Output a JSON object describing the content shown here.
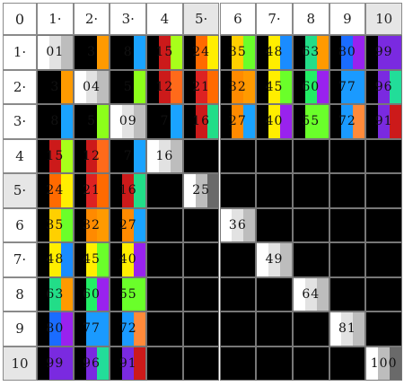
{
  "corner_label": "0",
  "column_headers": [
    "1·",
    "2·",
    "3·",
    "4",
    "5·",
    "6",
    "7·",
    "8",
    "9",
    "10"
  ],
  "row_headers": [
    "1·",
    "2·",
    "3·",
    "4",
    "5·",
    "6",
    "7·",
    "8",
    "9",
    "10"
  ],
  "highlighted_headers": [
    5,
    10
  ],
  "cells": [
    {
      "r": 1,
      "c": 1,
      "text": "01",
      "stripes": [
        "#ffffff",
        "#e2e2e2",
        "#bdbdbd"
      ]
    },
    {
      "r": 1,
      "c": 2,
      "text": "3",
      "stripes": [
        "#000000",
        "#000000",
        "#ff9a00"
      ]
    },
    {
      "r": 1,
      "c": 3,
      "text": "8",
      "stripes": [
        "#000000",
        "#000000",
        "#1aa3ff"
      ]
    },
    {
      "r": 1,
      "c": 4,
      "text": "15",
      "stripes": [
        "#000000",
        "#cc1a1a",
        "#a8ff1a"
      ]
    },
    {
      "r": 1,
      "c": 5,
      "text": "24",
      "stripes": [
        "#000000",
        "#ff6a00",
        "#ffee00"
      ]
    },
    {
      "r": 1,
      "c": 6,
      "text": "35",
      "stripes": [
        "#000000",
        "#ffd000",
        "#6aff2a"
      ]
    },
    {
      "r": 1,
      "c": 7,
      "text": "48",
      "stripes": [
        "#000000",
        "#ffee00",
        "#1a8cff"
      ]
    },
    {
      "r": 1,
      "c": 8,
      "text": "63",
      "stripes": [
        "#000000",
        "#22dd88",
        "#ff9a00"
      ]
    },
    {
      "r": 1,
      "c": 9,
      "text": "80",
      "stripes": [
        "#000000",
        "#1a6cff",
        "#9922ee"
      ]
    },
    {
      "r": 1,
      "c": 10,
      "text": "99",
      "stripes": [
        "#000000",
        "#7a2ae0",
        "#7a2ae0"
      ]
    },
    {
      "r": 2,
      "c": 1,
      "text": "3",
      "stripes": [
        "#000000",
        "#000000",
        "#ff9a00"
      ]
    },
    {
      "r": 2,
      "c": 2,
      "text": "04",
      "stripes": [
        "#ffffff",
        "#e2e2e2",
        "#bdbdbd"
      ]
    },
    {
      "r": 2,
      "c": 3,
      "text": "5",
      "stripes": [
        "#000000",
        "#000000",
        "#8cff1a"
      ]
    },
    {
      "r": 2,
      "c": 4,
      "text": "12",
      "stripes": [
        "#000000",
        "#cc1a1a",
        "#ff6a1a"
      ]
    },
    {
      "r": 2,
      "c": 5,
      "text": "21",
      "stripes": [
        "#000000",
        "#dd2222",
        "#ff6a00"
      ]
    },
    {
      "r": 2,
      "c": 6,
      "text": "32",
      "stripes": [
        "#000000",
        "#ff8a00",
        "#ff9a00"
      ]
    },
    {
      "r": 2,
      "c": 7,
      "text": "45",
      "stripes": [
        "#000000",
        "#ffee00",
        "#6aff2a"
      ]
    },
    {
      "r": 2,
      "c": 8,
      "text": "60",
      "stripes": [
        "#000000",
        "#22ee66",
        "#9922ee"
      ]
    },
    {
      "r": 2,
      "c": 9,
      "text": "77",
      "stripes": [
        "#000000",
        "#1a9aff",
        "#1a9aff"
      ]
    },
    {
      "r": 2,
      "c": 10,
      "text": "96",
      "stripes": [
        "#000000",
        "#7a2ae0",
        "#22dd99"
      ]
    },
    {
      "r": 3,
      "c": 1,
      "text": "8",
      "stripes": [
        "#000000",
        "#000000",
        "#1aa3ff"
      ]
    },
    {
      "r": 3,
      "c": 2,
      "text": "5",
      "stripes": [
        "#000000",
        "#000000",
        "#8cff1a"
      ]
    },
    {
      "r": 3,
      "c": 3,
      "text": "09",
      "stripes": [
        "#ffffff",
        "#e2e2e2",
        "#bdbdbd"
      ]
    },
    {
      "r": 3,
      "c": 4,
      "text": "7",
      "stripes": [
        "#000000",
        "#000000",
        "#1aa3ff"
      ]
    },
    {
      "r": 3,
      "c": 5,
      "text": "16",
      "stripes": [
        "#000000",
        "#cc1a1a",
        "#22dd88"
      ]
    },
    {
      "r": 3,
      "c": 6,
      "text": "27",
      "stripes": [
        "#000000",
        "#ff8a00",
        "#1aa3ff"
      ]
    },
    {
      "r": 3,
      "c": 7,
      "text": "40",
      "stripes": [
        "#000000",
        "#ffee00",
        "#9922ee"
      ]
    },
    {
      "r": 3,
      "c": 8,
      "text": "55",
      "stripes": [
        "#000000",
        "#6aff2a",
        "#6aff2a"
      ]
    },
    {
      "r": 3,
      "c": 9,
      "text": "72",
      "stripes": [
        "#000000",
        "#1a9aff",
        "#ff8a3a"
      ]
    },
    {
      "r": 3,
      "c": 10,
      "text": "91",
      "stripes": [
        "#000000",
        "#7a2ae0",
        "#cc1a1a"
      ]
    },
    {
      "r": 4,
      "c": 1,
      "text": "15",
      "stripes": [
        "#000000",
        "#cc1a1a",
        "#a8ff1a"
      ]
    },
    {
      "r": 4,
      "c": 2,
      "text": "12",
      "stripes": [
        "#000000",
        "#cc1a1a",
        "#ff6a1a"
      ]
    },
    {
      "r": 4,
      "c": 3,
      "text": "7",
      "stripes": [
        "#000000",
        "#000000",
        "#1aa3ff"
      ]
    },
    {
      "r": 4,
      "c": 4,
      "text": "16",
      "stripes": [
        "#ffffff",
        "#e2e2e2",
        "#bdbdbd"
      ]
    },
    {
      "r": 4,
      "c": 5,
      "text": "",
      "stripes": [
        "#000000",
        "#000000",
        "#000000"
      ]
    },
    {
      "r": 4,
      "c": 6,
      "text": "",
      "stripes": [
        "#000000",
        "#000000",
        "#000000"
      ]
    },
    {
      "r": 4,
      "c": 7,
      "text": "",
      "stripes": [
        "#000000",
        "#000000",
        "#000000"
      ]
    },
    {
      "r": 4,
      "c": 8,
      "text": "",
      "stripes": [
        "#000000",
        "#000000",
        "#000000"
      ]
    },
    {
      "r": 4,
      "c": 9,
      "text": "",
      "stripes": [
        "#000000",
        "#000000",
        "#000000"
      ]
    },
    {
      "r": 4,
      "c": 10,
      "text": "",
      "stripes": [
        "#000000",
        "#000000",
        "#000000"
      ]
    },
    {
      "r": 5,
      "c": 1,
      "text": "24",
      "stripes": [
        "#000000",
        "#ff6a00",
        "#ffee00"
      ]
    },
    {
      "r": 5,
      "c": 2,
      "text": "21",
      "stripes": [
        "#000000",
        "#dd2222",
        "#ff6a00"
      ]
    },
    {
      "r": 5,
      "c": 3,
      "text": "16",
      "stripes": [
        "#000000",
        "#cc1a1a",
        "#22dd88"
      ]
    },
    {
      "r": 5,
      "c": 4,
      "text": "",
      "stripes": [
        "#000000",
        "#000000",
        "#000000"
      ]
    },
    {
      "r": 5,
      "c": 5,
      "text": "25",
      "stripes": [
        "#ffffff",
        "#bdbdbd",
        "#6a6a6a"
      ]
    },
    {
      "r": 5,
      "c": 6,
      "text": "",
      "stripes": [
        "#000000",
        "#000000",
        "#000000"
      ]
    },
    {
      "r": 5,
      "c": 7,
      "text": "",
      "stripes": [
        "#000000",
        "#000000",
        "#000000"
      ]
    },
    {
      "r": 5,
      "c": 8,
      "text": "",
      "stripes": [
        "#000000",
        "#000000",
        "#000000"
      ]
    },
    {
      "r": 5,
      "c": 9,
      "text": "",
      "stripes": [
        "#000000",
        "#000000",
        "#000000"
      ]
    },
    {
      "r": 5,
      "c": 10,
      "text": "",
      "stripes": [
        "#000000",
        "#000000",
        "#000000"
      ]
    },
    {
      "r": 6,
      "c": 1,
      "text": "35",
      "stripes": [
        "#000000",
        "#ffd000",
        "#6aff2a"
      ]
    },
    {
      "r": 6,
      "c": 2,
      "text": "32",
      "stripes": [
        "#000000",
        "#ff8a00",
        "#ff9a00"
      ]
    },
    {
      "r": 6,
      "c": 3,
      "text": "27",
      "stripes": [
        "#000000",
        "#ff8a00",
        "#1aa3ff"
      ]
    },
    {
      "r": 6,
      "c": 4,
      "text": "",
      "stripes": [
        "#000000",
        "#000000",
        "#000000"
      ]
    },
    {
      "r": 6,
      "c": 5,
      "text": "",
      "stripes": [
        "#000000",
        "#000000",
        "#000000"
      ]
    },
    {
      "r": 6,
      "c": 6,
      "text": "36",
      "stripes": [
        "#ffffff",
        "#e2e2e2",
        "#bdbdbd"
      ]
    },
    {
      "r": 6,
      "c": 7,
      "text": "",
      "stripes": [
        "#000000",
        "#000000",
        "#000000"
      ]
    },
    {
      "r": 6,
      "c": 8,
      "text": "",
      "stripes": [
        "#000000",
        "#000000",
        "#000000"
      ]
    },
    {
      "r": 6,
      "c": 9,
      "text": "",
      "stripes": [
        "#000000",
        "#000000",
        "#000000"
      ]
    },
    {
      "r": 6,
      "c": 10,
      "text": "",
      "stripes": [
        "#000000",
        "#000000",
        "#000000"
      ]
    },
    {
      "r": 7,
      "c": 1,
      "text": "48",
      "stripes": [
        "#000000",
        "#ffee00",
        "#1a8cff"
      ]
    },
    {
      "r": 7,
      "c": 2,
      "text": "45",
      "stripes": [
        "#000000",
        "#ffee00",
        "#6aff2a"
      ]
    },
    {
      "r": 7,
      "c": 3,
      "text": "40",
      "stripes": [
        "#000000",
        "#ffee00",
        "#9922ee"
      ]
    },
    {
      "r": 7,
      "c": 4,
      "text": "",
      "stripes": [
        "#000000",
        "#000000",
        "#000000"
      ]
    },
    {
      "r": 7,
      "c": 5,
      "text": "",
      "stripes": [
        "#000000",
        "#000000",
        "#000000"
      ]
    },
    {
      "r": 7,
      "c": 6,
      "text": "",
      "stripes": [
        "#000000",
        "#000000",
        "#000000"
      ]
    },
    {
      "r": 7,
      "c": 7,
      "text": "49",
      "stripes": [
        "#ffffff",
        "#e2e2e2",
        "#bdbdbd"
      ]
    },
    {
      "r": 7,
      "c": 8,
      "text": "",
      "stripes": [
        "#000000",
        "#000000",
        "#000000"
      ]
    },
    {
      "r": 7,
      "c": 9,
      "text": "",
      "stripes": [
        "#000000",
        "#000000",
        "#000000"
      ]
    },
    {
      "r": 7,
      "c": 10,
      "text": "",
      "stripes": [
        "#000000",
        "#000000",
        "#000000"
      ]
    },
    {
      "r": 8,
      "c": 1,
      "text": "63",
      "stripes": [
        "#000000",
        "#22dd88",
        "#ff9a00"
      ]
    },
    {
      "r": 8,
      "c": 2,
      "text": "60",
      "stripes": [
        "#000000",
        "#22ee66",
        "#9922ee"
      ]
    },
    {
      "r": 8,
      "c": 3,
      "text": "55",
      "stripes": [
        "#000000",
        "#6aff2a",
        "#6aff2a"
      ]
    },
    {
      "r": 8,
      "c": 4,
      "text": "",
      "stripes": [
        "#000000",
        "#000000",
        "#000000"
      ]
    },
    {
      "r": 8,
      "c": 5,
      "text": "",
      "stripes": [
        "#000000",
        "#000000",
        "#000000"
      ]
    },
    {
      "r": 8,
      "c": 6,
      "text": "",
      "stripes": [
        "#000000",
        "#000000",
        "#000000"
      ]
    },
    {
      "r": 8,
      "c": 7,
      "text": "",
      "stripes": [
        "#000000",
        "#000000",
        "#000000"
      ]
    },
    {
      "r": 8,
      "c": 8,
      "text": "64",
      "stripes": [
        "#ffffff",
        "#e2e2e2",
        "#bdbdbd"
      ]
    },
    {
      "r": 8,
      "c": 9,
      "text": "",
      "stripes": [
        "#000000",
        "#000000",
        "#000000"
      ]
    },
    {
      "r": 8,
      "c": 10,
      "text": "",
      "stripes": [
        "#000000",
        "#000000",
        "#000000"
      ]
    },
    {
      "r": 9,
      "c": 1,
      "text": "80",
      "stripes": [
        "#000000",
        "#1a6cff",
        "#9922ee"
      ]
    },
    {
      "r": 9,
      "c": 2,
      "text": "77",
      "stripes": [
        "#000000",
        "#1a9aff",
        "#1a9aff"
      ]
    },
    {
      "r": 9,
      "c": 3,
      "text": "72",
      "stripes": [
        "#000000",
        "#1a9aff",
        "#ff8a3a"
      ]
    },
    {
      "r": 9,
      "c": 4,
      "text": "",
      "stripes": [
        "#000000",
        "#000000",
        "#000000"
      ]
    },
    {
      "r": 9,
      "c": 5,
      "text": "",
      "stripes": [
        "#000000",
        "#000000",
        "#000000"
      ]
    },
    {
      "r": 9,
      "c": 6,
      "text": "",
      "stripes": [
        "#000000",
        "#000000",
        "#000000"
      ]
    },
    {
      "r": 9,
      "c": 7,
      "text": "",
      "stripes": [
        "#000000",
        "#000000",
        "#000000"
      ]
    },
    {
      "r": 9,
      "c": 8,
      "text": "",
      "stripes": [
        "#000000",
        "#000000",
        "#000000"
      ]
    },
    {
      "r": 9,
      "c": 9,
      "text": "81",
      "stripes": [
        "#ffffff",
        "#e2e2e2",
        "#bdbdbd"
      ]
    },
    {
      "r": 9,
      "c": 10,
      "text": "",
      "stripes": [
        "#000000",
        "#000000",
        "#000000"
      ]
    },
    {
      "r": 10,
      "c": 1,
      "text": "99",
      "stripes": [
        "#000000",
        "#7a2ae0",
        "#7a2ae0"
      ]
    },
    {
      "r": 10,
      "c": 2,
      "text": "96",
      "stripes": [
        "#000000",
        "#7a2ae0",
        "#22dd99"
      ]
    },
    {
      "r": 10,
      "c": 3,
      "text": "91",
      "stripes": [
        "#000000",
        "#7a2ae0",
        "#cc1a1a"
      ]
    },
    {
      "r": 10,
      "c": 4,
      "text": "",
      "stripes": [
        "#000000",
        "#000000",
        "#000000"
      ]
    },
    {
      "r": 10,
      "c": 5,
      "text": "",
      "stripes": [
        "#000000",
        "#000000",
        "#000000"
      ]
    },
    {
      "r": 10,
      "c": 6,
      "text": "",
      "stripes": [
        "#000000",
        "#000000",
        "#000000"
      ]
    },
    {
      "r": 10,
      "c": 7,
      "text": "",
      "stripes": [
        "#000000",
        "#000000",
        "#000000"
      ]
    },
    {
      "r": 10,
      "c": 8,
      "text": "",
      "stripes": [
        "#000000",
        "#000000",
        "#000000"
      ]
    },
    {
      "r": 10,
      "c": 9,
      "text": "",
      "stripes": [
        "#000000",
        "#000000",
        "#000000"
      ]
    },
    {
      "r": 10,
      "c": 10,
      "text": "100",
      "stripes": [
        "#ffffff",
        "#bdbdbd",
        "#6a6a6a"
      ]
    }
  ]
}
